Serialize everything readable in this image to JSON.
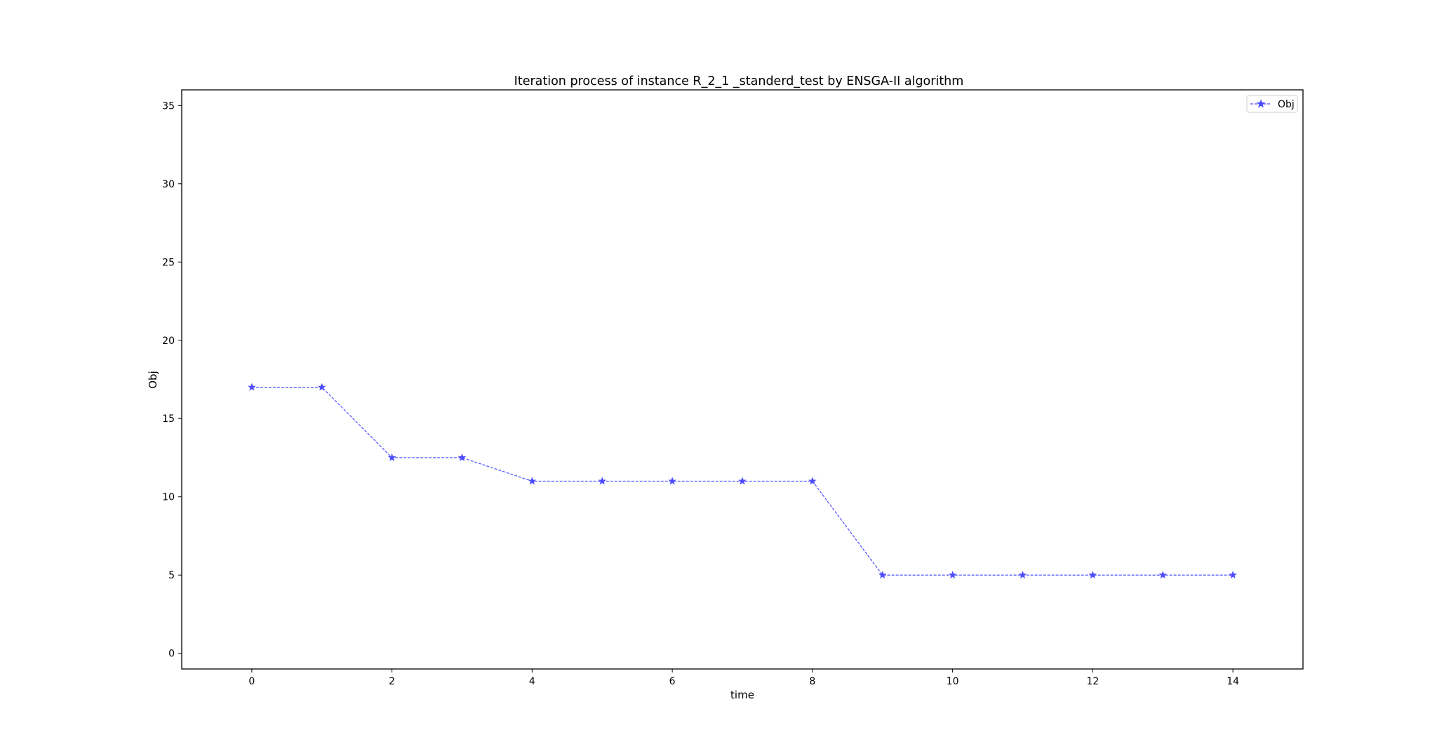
{
  "chart_data": {
    "type": "line",
    "title": "Iteration process of instance R_2_1 _standerd_test by ENSGA-II algorithm",
    "xlabel": "time",
    "ylabel": "Obj",
    "xlim": [
      -1,
      15
    ],
    "ylim": [
      -1,
      36
    ],
    "xticks": [
      0,
      2,
      4,
      6,
      8,
      10,
      12,
      14
    ],
    "yticks": [
      0,
      5,
      10,
      15,
      20,
      25,
      30,
      35
    ],
    "grid": false,
    "legend_position": "top-right",
    "series": [
      {
        "name": "Obj",
        "color": "#4d4dff",
        "line_style": "dashed",
        "marker": "star",
        "x": [
          0,
          1,
          2,
          3,
          4,
          5,
          6,
          7,
          8,
          9,
          10,
          11,
          12,
          13,
          14
        ],
        "y": [
          17,
          17,
          12.5,
          12.5,
          11,
          11,
          11,
          11,
          11,
          5,
          5,
          5,
          5,
          5,
          5
        ]
      }
    ]
  }
}
